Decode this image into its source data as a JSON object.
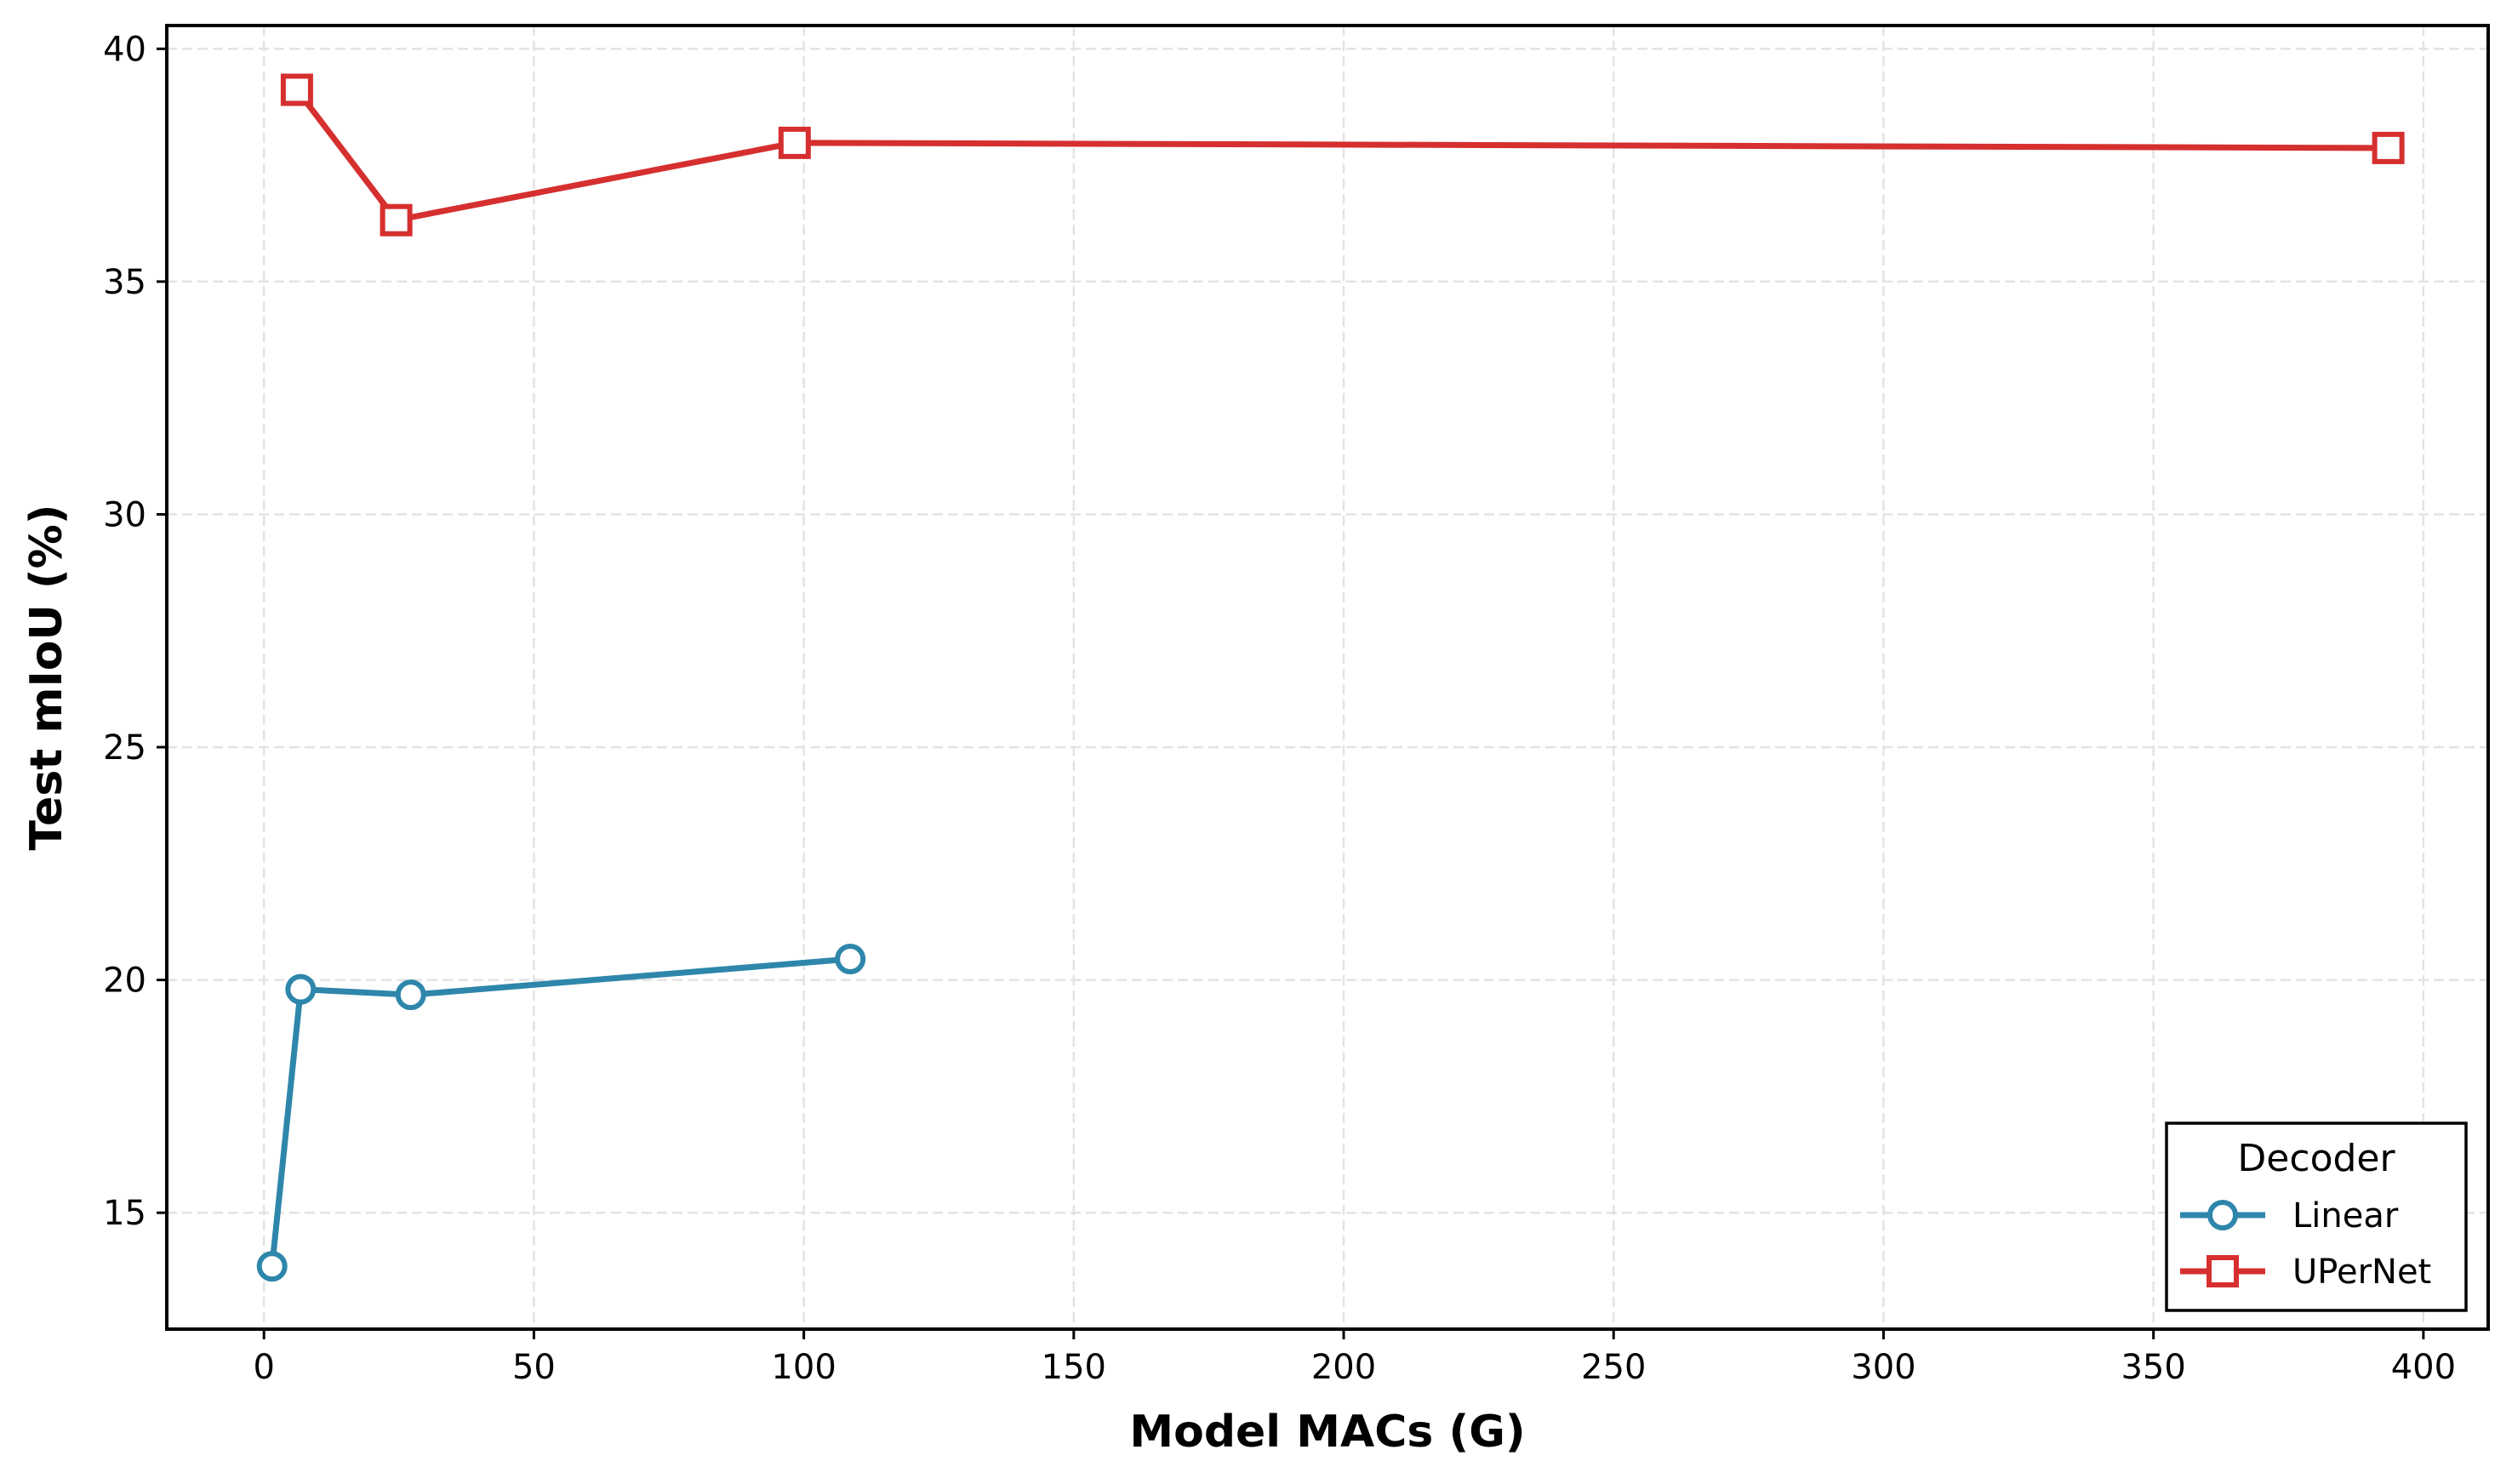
{
  "chart_data": {
    "type": "line",
    "title": "",
    "xlabel": "Model MACs (G)",
    "ylabel": "Test mIoU (%)",
    "xlim": [
      -18,
      412
    ],
    "ylim": [
      12.5,
      40.5
    ],
    "xticks": [
      0,
      50,
      100,
      150,
      200,
      250,
      300,
      350,
      400
    ],
    "yticks": [
      15,
      20,
      25,
      30,
      35,
      40
    ],
    "grid": true,
    "legend": {
      "title": "Decoder",
      "placement": "lower-right"
    },
    "series": [
      {
        "name": "Linear",
        "color": "#2e86ab",
        "marker": "circle",
        "x": [
          1.5,
          6.8,
          27.2,
          108.6
        ],
        "y": [
          13.85,
          19.8,
          19.68,
          20.45
        ]
      },
      {
        "name": "UPerNet",
        "color": "#d62f2f",
        "marker": "square",
        "x": [
          6.1,
          24.5,
          98.3,
          393.5
        ],
        "y": [
          39.12,
          36.32,
          37.98,
          37.87
        ]
      }
    ]
  }
}
